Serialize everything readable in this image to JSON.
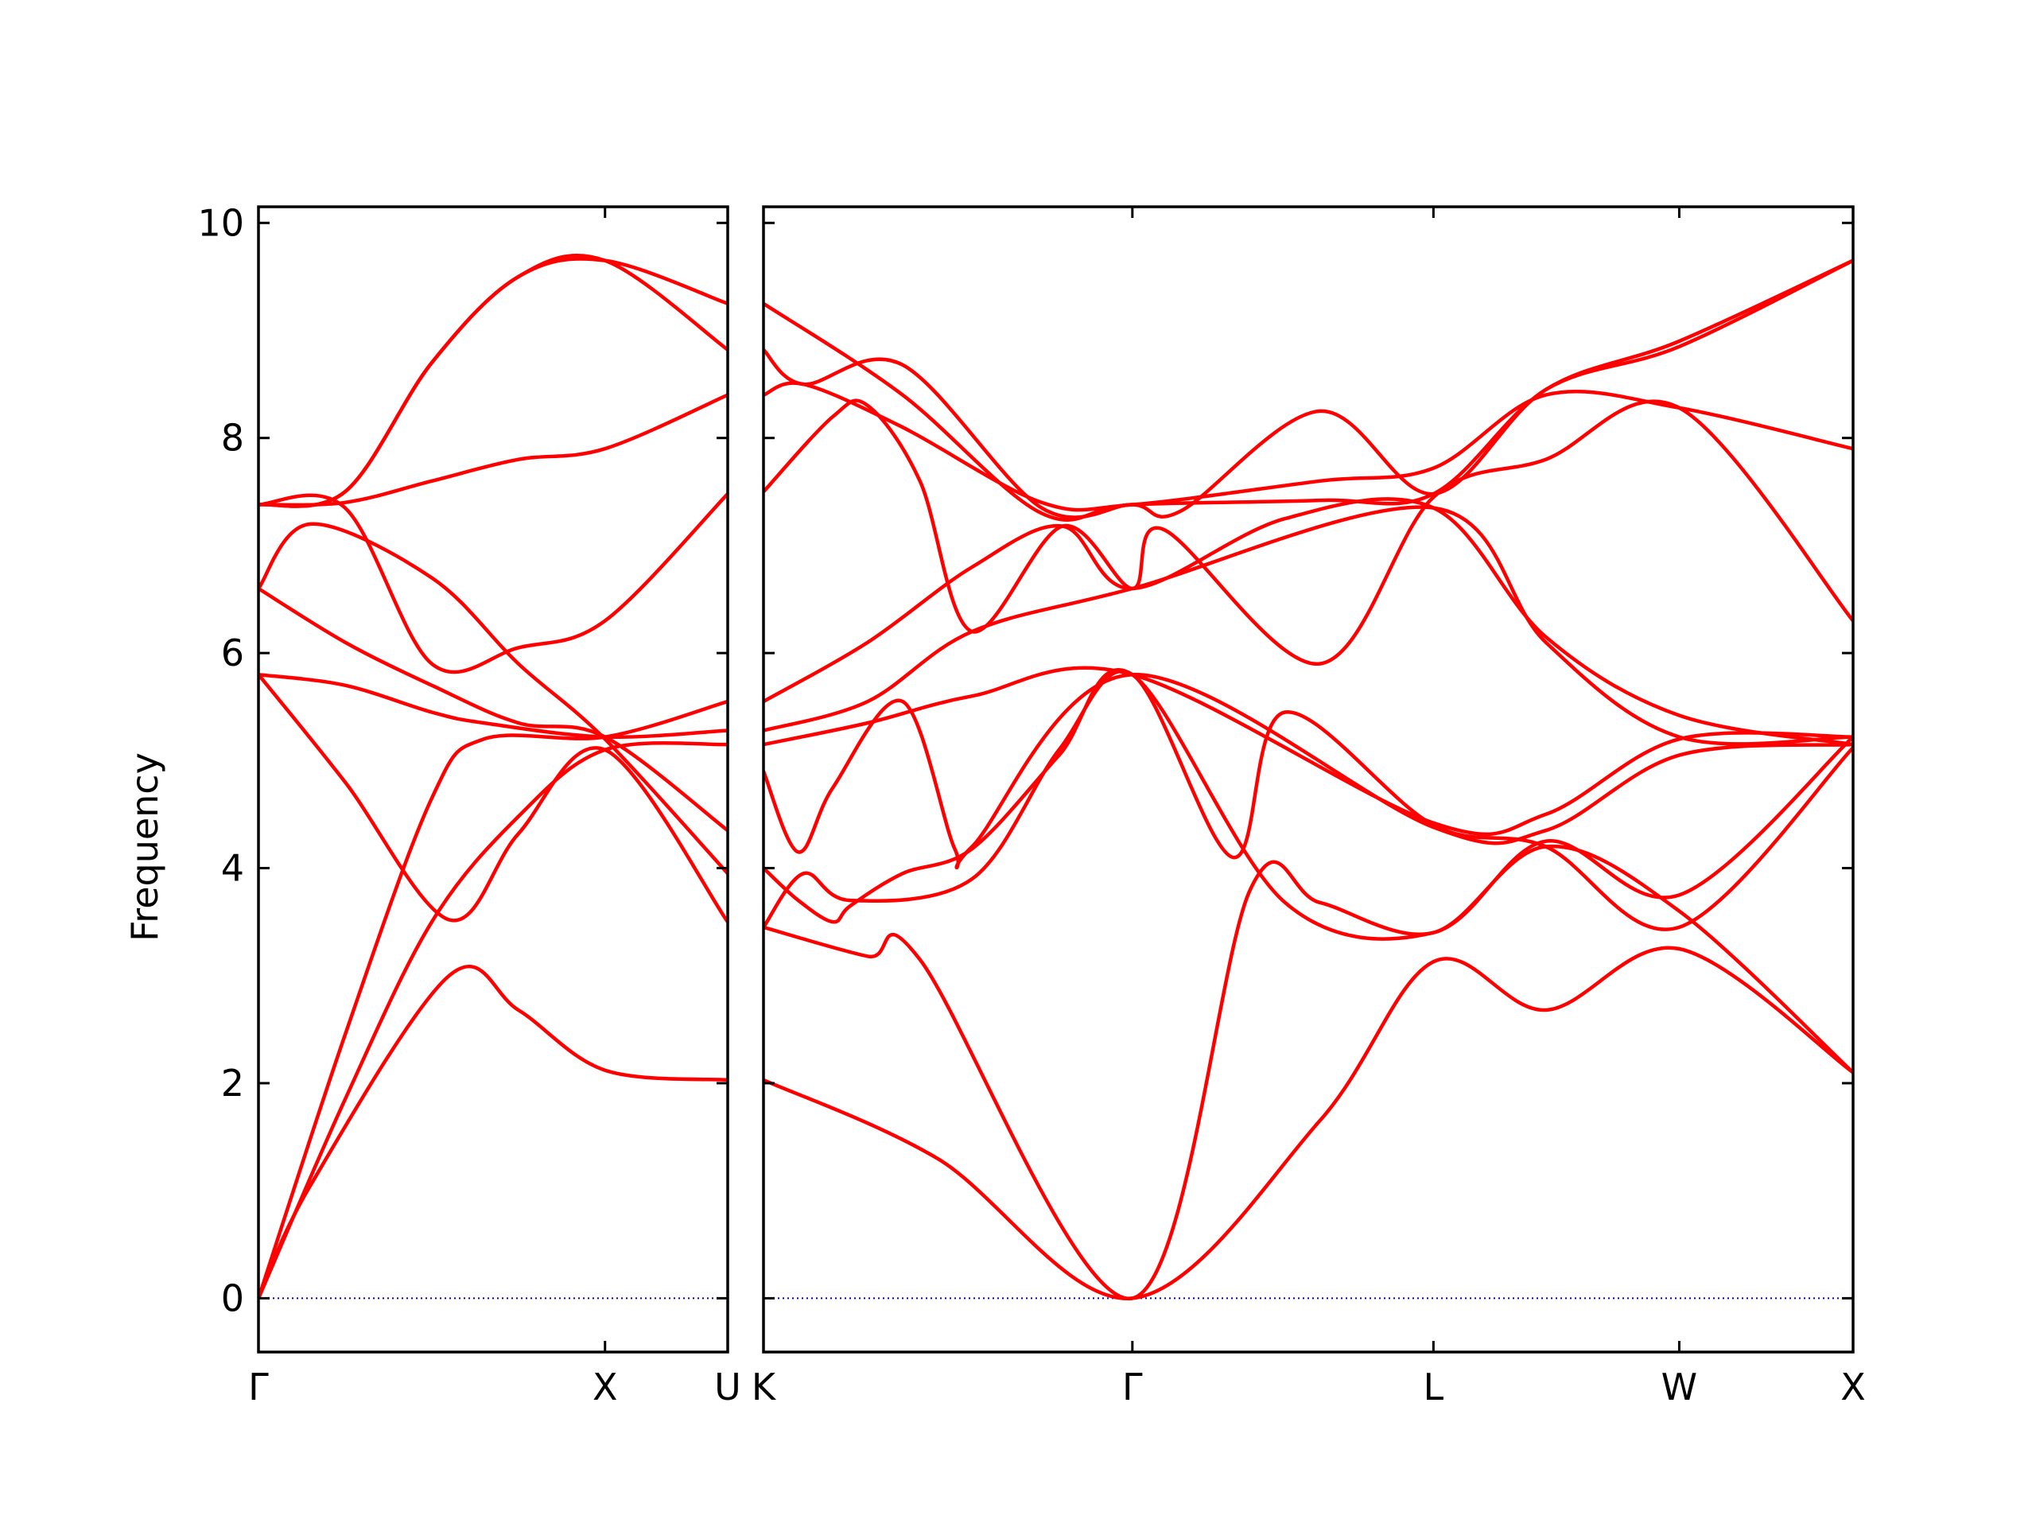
{
  "chart_data": {
    "type": "line",
    "ylabel": "Frequency",
    "ylim": [
      -0.5,
      10.15
    ],
    "yticks": [
      "0",
      "2",
      "4",
      "6",
      "8",
      "10"
    ],
    "line_color": "#ff0000",
    "zero_line_color": "#0000cc",
    "grid": false,
    "panels": [
      {
        "name": "left",
        "segments": [
          {
            "from": "Γ",
            "to": "X",
            "length": 1.0
          },
          {
            "from": "X",
            "to": "U",
            "length": 0.354
          }
        ],
        "tick_labels": [
          "Γ",
          "X",
          "U"
        ],
        "bands": [
          {
            "x": [
              0,
              0.15,
              0.55,
              0.75,
              1.0,
              1.354
            ],
            "y": [
              0,
              1.05,
              3.0,
              2.68,
              2.12,
              2.03
            ]
          },
          {
            "x": [
              0,
              0.25,
              0.5,
              0.75,
              1.0,
              1.354
            ],
            "y": [
              0,
              1.85,
              3.5,
              4.48,
              5.1,
              5.15
            ]
          },
          {
            "x": [
              0,
              0.25,
              0.5,
              0.65,
              1.0,
              1.354
            ],
            "y": [
              0,
              2.45,
              4.65,
              5.2,
              5.22,
              5.55
            ]
          },
          {
            "x": [
              0,
              0.25,
              0.55,
              0.75,
              1.0,
              1.354
            ],
            "y": [
              5.8,
              4.8,
              3.52,
              4.32,
              5.1,
              3.5
            ]
          },
          {
            "x": [
              0,
              0.25,
              0.5,
              0.65,
              1.0,
              1.354
            ],
            "y": [
              5.8,
              5.7,
              5.45,
              5.35,
              5.22,
              5.28
            ]
          },
          {
            "x": [
              0,
              0.25,
              0.5,
              0.75,
              1.0,
              1.354
            ],
            "y": [
              6.6,
              6.1,
              5.7,
              5.35,
              5.22,
              4.35
            ]
          },
          {
            "x": [
              0,
              0.15,
              0.5,
              0.75,
              1.0,
              1.354
            ],
            "y": [
              6.6,
              7.2,
              6.7,
              5.9,
              5.2,
              3.95
            ]
          },
          {
            "x": [
              0,
              0.25,
              0.5,
              0.75,
              1.0,
              1.354
            ],
            "y": [
              7.38,
              7.35,
              5.9,
              6.05,
              6.3,
              7.48
            ]
          },
          {
            "x": [
              0,
              0.25,
              0.5,
              0.75,
              1.0,
              1.354
            ],
            "y": [
              7.38,
              7.4,
              7.6,
              7.8,
              7.9,
              8.4
            ]
          },
          {
            "x": [
              0,
              0.25,
              0.5,
              0.75,
              1.0,
              1.354
            ],
            "y": [
              7.38,
              7.5,
              8.7,
              9.5,
              9.65,
              8.82
            ]
          },
          {
            "x": [
              0,
              0.25,
              0.5,
              0.75,
              1.0,
              1.354
            ],
            "y": [
              7.38,
              7.5,
              8.7,
              9.5,
              9.65,
              9.25
            ]
          }
        ]
      },
      {
        "name": "right",
        "segments": [
          {
            "from": "K",
            "to": "Γ",
            "length": 1.061
          },
          {
            "from": "Γ",
            "to": "L",
            "length": 0.866
          },
          {
            "from": "L",
            "to": "W",
            "length": 0.707
          },
          {
            "from": "W",
            "to": "X",
            "length": 0.5
          }
        ],
        "tick_labels": [
          "K",
          "Γ",
          "L",
          "W",
          "X"
        ],
        "bands": [
          {
            "x": [
              0,
              0.5,
              1.061,
              1.6,
              1.927,
              2.25,
              2.634,
              3.134
            ],
            "y": [
              2.03,
              1.3,
              0,
              1.65,
              3.13,
              2.68,
              3.25,
              2.1
            ]
          },
          {
            "x": [
              0,
              0.3,
              0.45,
              1.061,
              1.4,
              1.6,
              1.927,
              2.25,
              2.634,
              3.134
            ],
            "y": [
              3.45,
              3.18,
              3.15,
              0,
              3.8,
              3.68,
              3.4,
              4.2,
              3.6,
              2.1
            ]
          },
          {
            "x": [
              0,
              0.115,
              0.25,
              0.6,
              0.85,
              1.061,
              1.35,
              1.5,
              1.927,
              2.25,
              2.634,
              3.134
            ],
            "y": [
              3.45,
              3.95,
              3.7,
              3.9,
              5.1,
              5.8,
              4.1,
              5.45,
              4.4,
              4.2,
              3.45,
              5.12
            ]
          },
          {
            "x": [
              0,
              0.1,
              0.2,
              0.25,
              0.4,
              0.6,
              0.85,
              1.061,
              1.5,
              1.927,
              2.25,
              2.634,
              3.134
            ],
            "y": [
              4.0,
              3.7,
              3.5,
              3.65,
              3.95,
              4.18,
              5.05,
              5.8,
              3.68,
              3.4,
              4.25,
              3.75,
              5.22
            ]
          },
          {
            "x": [
              0,
              0.1,
              0.2,
              0.4,
              0.55,
              0.6,
              1.061,
              1.927,
              2.25,
              2.634,
              3.134
            ],
            "y": [
              4.9,
              4.15,
              4.75,
              5.55,
              4.18,
              4.2,
              5.8,
              4.38,
              4.35,
              5.05,
              5.15
            ]
          },
          {
            "x": [
              0,
              0.3,
              0.6,
              1.061,
              1.927,
              2.25,
              2.634,
              3.134
            ],
            "y": [
              5.15,
              5.35,
              5.6,
              5.8,
              4.42,
              4.5,
              5.2,
              5.22
            ]
          },
          {
            "x": [
              0,
              0.3,
              0.6,
              1.061,
              1.927,
              2.25,
              2.634,
              3.134
            ],
            "y": [
              5.28,
              5.55,
              6.2,
              6.6,
              7.35,
              6.1,
              5.22,
              5.22
            ]
          },
          {
            "x": [
              0,
              0.3,
              0.6,
              0.86,
              1.061,
              1.5,
              1.927,
              2.25,
              2.634,
              3.134
            ],
            "y": [
              5.55,
              6.1,
              6.8,
              7.18,
              6.6,
              7.25,
              7.35,
              6.15,
              5.42,
              5.15
            ]
          },
          {
            "x": [
              0,
              0.2,
              0.3,
              0.45,
              0.6,
              0.86,
              1.061,
              1.15,
              1.6,
              1.927,
              2.25,
              2.634,
              3.134
            ],
            "y": [
              7.5,
              8.2,
              8.3,
              7.6,
              6.2,
              7.18,
              6.6,
              7.15,
              5.9,
              7.45,
              7.8,
              8.28,
              6.3
            ]
          },
          {
            "x": [
              0,
              0.115,
              0.4,
              0.8,
              1.061,
              1.6,
              1.927,
              2.25,
              2.634,
              3.134
            ],
            "y": [
              8.4,
              8.5,
              8.1,
              7.4,
              7.38,
              7.6,
              7.72,
              8.4,
              8.28,
              7.9
            ]
          },
          {
            "x": [
              0,
              0.115,
              0.4,
              0.8,
              1.061,
              1.2,
              1.6,
              1.927,
              2.25,
              2.634,
              3.134
            ],
            "y": [
              8.82,
              8.5,
              8.68,
              7.35,
              7.38,
              7.32,
              8.25,
              7.48,
              8.45,
              8.85,
              9.65
            ]
          },
          {
            "x": [
              0,
              0.4,
              0.8,
              1.061,
              1.6,
              1.927,
              2.25,
              2.634,
              3.134
            ],
            "y": [
              9.25,
              8.4,
              7.3,
              7.38,
              7.42,
              7.48,
              8.45,
              8.9,
              9.65
            ]
          }
        ]
      }
    ]
  }
}
